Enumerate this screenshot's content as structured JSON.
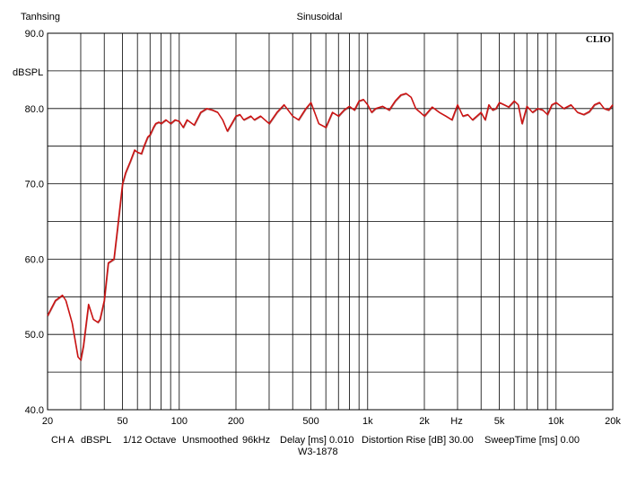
{
  "header": {
    "left": "Tanhsing",
    "center": "Sinusoidal",
    "brand": "CLIO"
  },
  "footer": {
    "ch": "CH A",
    "units": "dBSPL",
    "octave": "1/12 Octave",
    "smoothing": "Unsmoothed",
    "rate": "96kHz",
    "delay": "Delay [ms] 0.010",
    "distortion": "Distortion Rise [dB] 30.00",
    "sweep": "SweepTime [ms] 0.00",
    "id": "W3-1878"
  },
  "colors": {
    "curve": "#cc1111",
    "grid": "#000000",
    "background": "#ffffff"
  },
  "chart_data": {
    "type": "line",
    "title": "Sinusoidal",
    "xlabel": "Hz",
    "ylabel": "dBSPL",
    "xscale": "log",
    "xlim": [
      20,
      20000
    ],
    "ylim": [
      40,
      90
    ],
    "grid": true,
    "x_tick_labels": [
      {
        "v": 20,
        "t": "20"
      },
      {
        "v": 50,
        "t": "50"
      },
      {
        "v": 100,
        "t": "100"
      },
      {
        "v": 200,
        "t": "200"
      },
      {
        "v": 500,
        "t": "500"
      },
      {
        "v": 1000,
        "t": "1k"
      },
      {
        "v": 2000,
        "t": "2k"
      },
      {
        "v": 5000,
        "t": "5k"
      },
      {
        "v": 10000,
        "t": "10k"
      },
      {
        "v": 20000,
        "t": "20k"
      }
    ],
    "y_tick_labels": [
      "40.0",
      "50.0",
      "60.0",
      "70.0",
      "80.0",
      "90.0"
    ],
    "series": [
      {
        "x": [
          20,
          22,
          24,
          25,
          27,
          29,
          30,
          31,
          33,
          35,
          37,
          38,
          40,
          42,
          45,
          47,
          48,
          50,
          52,
          55,
          58,
          60,
          63,
          65,
          68,
          70,
          73,
          75,
          78,
          80,
          85,
          90,
          95,
          100,
          105,
          110,
          120,
          130,
          140,
          150,
          160,
          170,
          180,
          190,
          200,
          210,
          220,
          240,
          250,
          270,
          300,
          330,
          360,
          400,
          430,
          470,
          500,
          550,
          600,
          650,
          700,
          750,
          800,
          850,
          900,
          950,
          1000,
          1050,
          1100,
          1200,
          1300,
          1400,
          1500,
          1600,
          1700,
          1800,
          1900,
          2000,
          2200,
          2400,
          2600,
          2800,
          3000,
          3200,
          3400,
          3600,
          3800,
          4000,
          4200,
          4400,
          4600,
          4800,
          5000,
          5300,
          5600,
          6000,
          6300,
          6600,
          7000,
          7500,
          8000,
          8500,
          9000,
          9500,
          10000,
          11000,
          12000,
          13000,
          14000,
          15000,
          16000,
          17000,
          18000,
          19000,
          20000
        ],
        "y": [
          52.5,
          54.5,
          55.2,
          54.5,
          51.5,
          47.0,
          46.6,
          48.5,
          54.0,
          52.0,
          51.6,
          52.0,
          54.5,
          59.5,
          60.0,
          64.0,
          66.0,
          70.0,
          71.5,
          73.0,
          74.5,
          74.2,
          74.0,
          75.0,
          76.2,
          76.5,
          77.5,
          78.0,
          78.2,
          78.0,
          78.5,
          78.0,
          78.5,
          78.3,
          77.5,
          78.5,
          77.8,
          79.5,
          80.0,
          79.8,
          79.5,
          78.5,
          77.0,
          78.0,
          79.0,
          79.2,
          78.5,
          79.0,
          78.5,
          79.0,
          78.0,
          79.5,
          80.5,
          79.0,
          78.5,
          80.0,
          80.8,
          78.0,
          77.5,
          79.5,
          79.0,
          79.8,
          80.3,
          79.8,
          81.0,
          81.2,
          80.5,
          79.5,
          80.0,
          80.3,
          79.8,
          81.0,
          81.8,
          82.0,
          81.5,
          80.0,
          79.5,
          79.0,
          80.2,
          79.5,
          79.0,
          78.5,
          80.5,
          79.0,
          79.2,
          78.5,
          79.0,
          79.5,
          78.5,
          80.5,
          79.8,
          80.0,
          80.8,
          80.5,
          80.2,
          81.0,
          80.5,
          78.0,
          80.3,
          79.5,
          80.0,
          79.8,
          79.2,
          80.5,
          80.8,
          80.0,
          80.5,
          79.5,
          79.2,
          79.6,
          80.5,
          80.8,
          80.0,
          79.8,
          80.5
        ]
      }
    ]
  }
}
